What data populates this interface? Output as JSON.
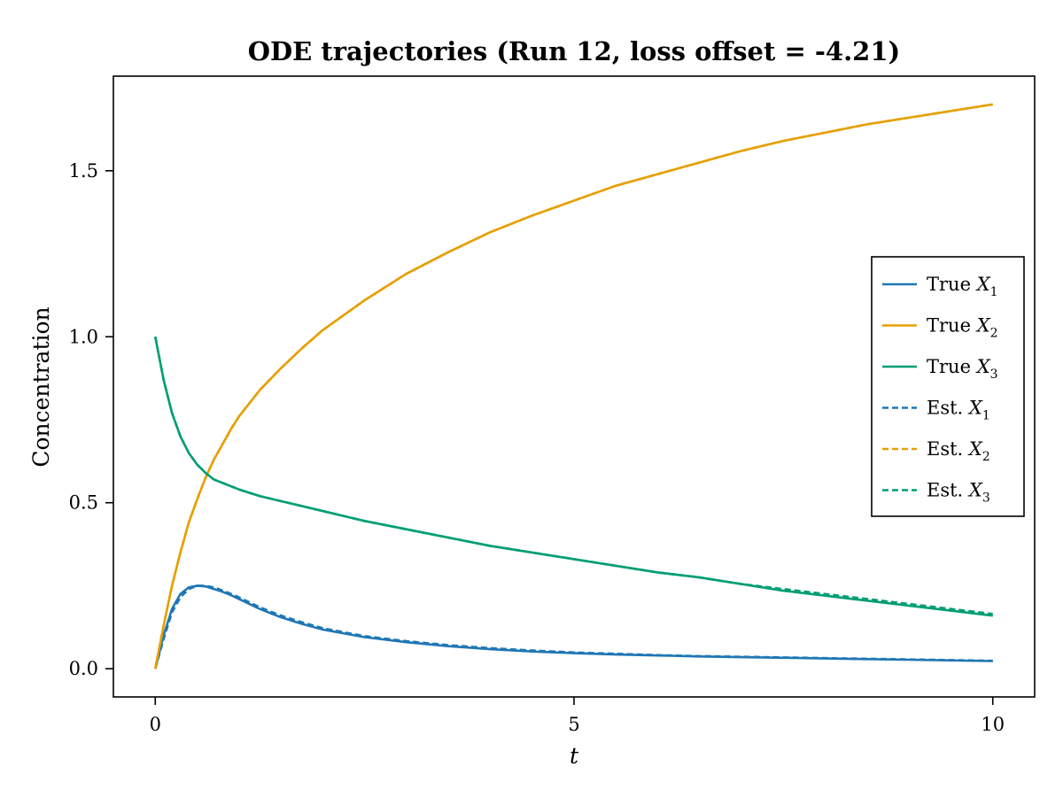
{
  "chart_data": {
    "type": "line",
    "title": "ODE trajectories (Run 12, loss offset = -4.21)",
    "xlabel": "t",
    "ylabel": "Concentration",
    "xlim": [
      -0.5,
      10.5
    ],
    "ylim": [
      -0.085,
      1.785
    ],
    "x_ticks": [
      0,
      5,
      10
    ],
    "x_tick_labels": [
      "0",
      "5",
      "10"
    ],
    "y_ticks": [
      0.0,
      0.5,
      1.0,
      1.5
    ],
    "y_tick_labels": [
      "0.0",
      "0.5",
      "1.0",
      "1.5"
    ],
    "grid": false,
    "legend_position": "right",
    "x": [
      0,
      0.1,
      0.2,
      0.3,
      0.4,
      0.5,
      0.6,
      0.7,
      0.8,
      0.9,
      1.0,
      1.25,
      1.5,
      1.75,
      2.0,
      2.5,
      3.0,
      3.5,
      4.0,
      4.5,
      5.0,
      5.5,
      6.0,
      6.5,
      7.0,
      7.5,
      8.0,
      8.5,
      9.0,
      9.5,
      10.0
    ],
    "series": [
      {
        "name": "True X1",
        "legend_text": "True",
        "legend_var": "X",
        "legend_sub": "1",
        "color": "#1f77b4",
        "dash": "solid",
        "values": [
          0.0,
          0.1,
          0.18,
          0.225,
          0.245,
          0.25,
          0.248,
          0.24,
          0.232,
          0.222,
          0.21,
          0.18,
          0.155,
          0.135,
          0.118,
          0.095,
          0.08,
          0.068,
          0.059,
          0.052,
          0.047,
          0.043,
          0.04,
          0.037,
          0.035,
          0.033,
          0.031,
          0.029,
          0.027,
          0.025,
          0.023
        ]
      },
      {
        "name": "True X2",
        "legend_text": "True",
        "legend_var": "X",
        "legend_sub": "2",
        "color": "#e69f00",
        "dash": "solid",
        "values": [
          0.0,
          0.13,
          0.25,
          0.35,
          0.44,
          0.51,
          0.575,
          0.63,
          0.675,
          0.72,
          0.76,
          0.84,
          0.905,
          0.965,
          1.02,
          1.11,
          1.19,
          1.255,
          1.315,
          1.365,
          1.41,
          1.455,
          1.49,
          1.525,
          1.56,
          1.59,
          1.615,
          1.64,
          1.66,
          1.68,
          1.7
        ]
      },
      {
        "name": "True X3",
        "legend_text": "True",
        "legend_var": "X",
        "legend_sub": "3",
        "color": "#009e73",
        "dash": "solid",
        "values": [
          1.0,
          0.87,
          0.77,
          0.7,
          0.65,
          0.615,
          0.59,
          0.57,
          0.56,
          0.55,
          0.54,
          0.52,
          0.505,
          0.49,
          0.475,
          0.445,
          0.42,
          0.395,
          0.37,
          0.35,
          0.33,
          0.31,
          0.29,
          0.275,
          0.255,
          0.235,
          0.22,
          0.205,
          0.19,
          0.175,
          0.16
        ]
      },
      {
        "name": "Est. X1",
        "legend_text": "Est.",
        "legend_var": "X",
        "legend_sub": "1",
        "color": "#1f77b4",
        "dash": "dashed",
        "values": [
          0.0,
          0.09,
          0.17,
          0.215,
          0.24,
          0.25,
          0.25,
          0.245,
          0.236,
          0.226,
          0.215,
          0.185,
          0.16,
          0.14,
          0.122,
          0.098,
          0.083,
          0.071,
          0.062,
          0.055,
          0.049,
          0.045,
          0.041,
          0.038,
          0.036,
          0.034,
          0.032,
          0.03,
          0.028,
          0.026,
          0.024
        ]
      },
      {
        "name": "Est. X2",
        "legend_text": "Est.",
        "legend_var": "X",
        "legend_sub": "2",
        "color": "#e69f00",
        "dash": "dashed",
        "values": [
          0.0,
          0.13,
          0.25,
          0.35,
          0.44,
          0.51,
          0.575,
          0.63,
          0.675,
          0.72,
          0.76,
          0.84,
          0.905,
          0.965,
          1.02,
          1.11,
          1.19,
          1.255,
          1.315,
          1.365,
          1.41,
          1.455,
          1.49,
          1.525,
          1.56,
          1.59,
          1.615,
          1.64,
          1.66,
          1.68,
          1.7
        ]
      },
      {
        "name": "Est. X3",
        "legend_text": "Est.",
        "legend_var": "X",
        "legend_sub": "3",
        "color": "#009e73",
        "dash": "dashed",
        "values": [
          1.0,
          0.87,
          0.77,
          0.7,
          0.65,
          0.615,
          0.59,
          0.57,
          0.56,
          0.55,
          0.54,
          0.52,
          0.505,
          0.49,
          0.475,
          0.445,
          0.42,
          0.395,
          0.37,
          0.35,
          0.33,
          0.31,
          0.29,
          0.275,
          0.255,
          0.24,
          0.225,
          0.21,
          0.195,
          0.18,
          0.165
        ]
      }
    ]
  }
}
